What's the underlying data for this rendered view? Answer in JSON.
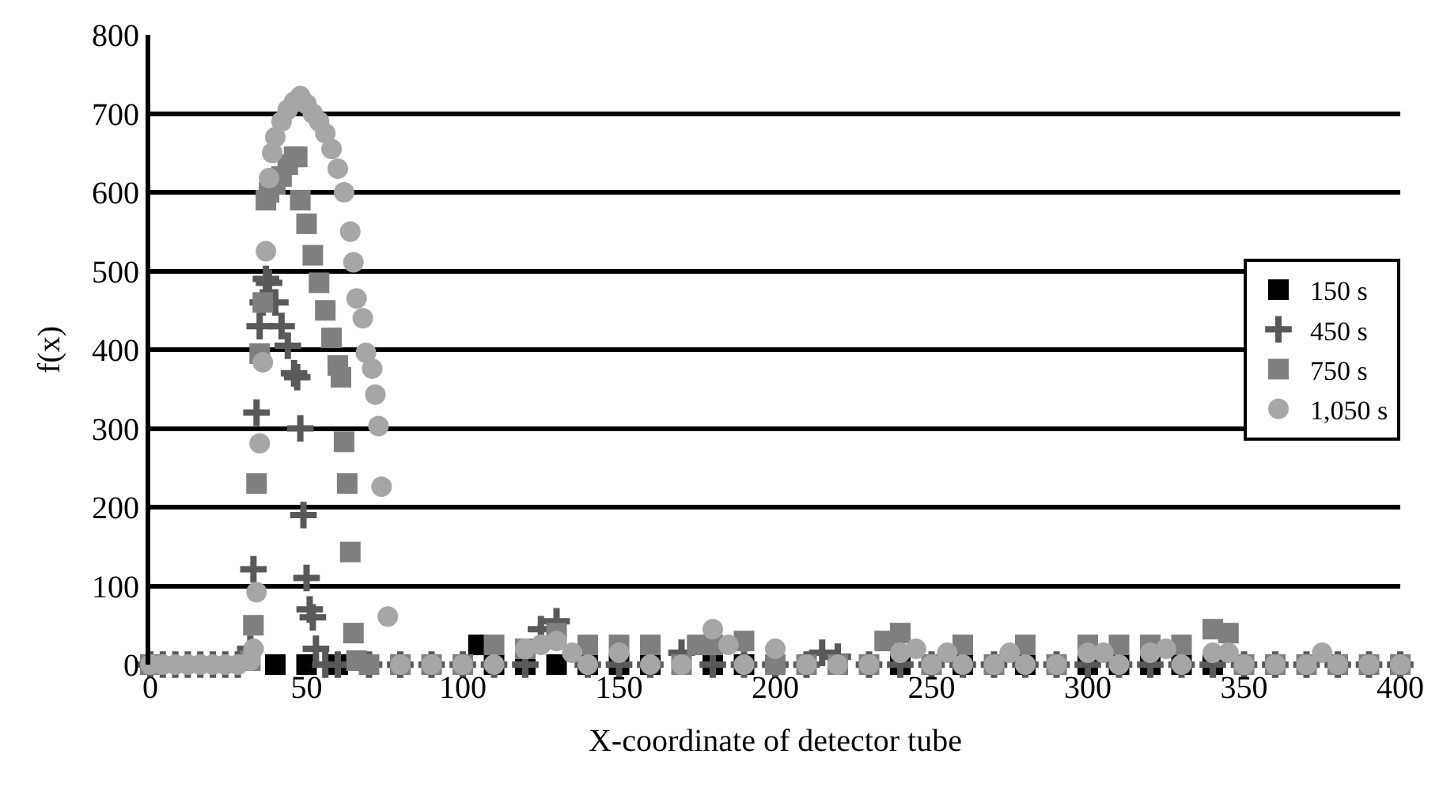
{
  "chart_data": {
    "type": "scatter",
    "xlabel": "X-coordinate of detector tube",
    "ylabel": "f(x)",
    "xlim": [
      0,
      400
    ],
    "xticks": [
      0,
      50,
      100,
      150,
      200,
      250,
      300,
      350,
      400
    ],
    "ylim": [
      0,
      800
    ],
    "yticks": [
      0,
      100,
      200,
      300,
      400,
      500,
      600,
      700,
      800
    ],
    "grid": "y",
    "legend": "right",
    "series": [
      {
        "name": "150 s",
        "color": "#000000",
        "marker": "square",
        "x": [
          40,
          50,
          60,
          105,
          110,
          120,
          130,
          140,
          150,
          160,
          180,
          190,
          240,
          260,
          280,
          300,
          310,
          320,
          330,
          340
        ],
        "values": [
          0,
          0,
          0,
          25,
          0,
          0,
          0,
          0,
          0,
          0,
          0,
          0,
          0,
          0,
          0,
          0,
          0,
          0,
          0,
          0
        ]
      },
      {
        "name": "450 s",
        "color": "#595959",
        "marker": "cross",
        "x": [
          0,
          4,
          8,
          12,
          16,
          20,
          24,
          28,
          32,
          33,
          34,
          35,
          36,
          37,
          38,
          40,
          42,
          44,
          46,
          47,
          48,
          49,
          50,
          51,
          52,
          53,
          56,
          60,
          70,
          80,
          90,
          100,
          110,
          120,
          125,
          130,
          140,
          150,
          160,
          170,
          180,
          190,
          200,
          210,
          215,
          220,
          230,
          240,
          250,
          260,
          270,
          280,
          290,
          300,
          310,
          320,
          330,
          340,
          350,
          360,
          370,
          380,
          390,
          400
        ],
        "values": [
          0,
          0,
          0,
          0,
          0,
          0,
          0,
          0,
          20,
          121,
          320,
          430,
          460,
          490,
          485,
          460,
          430,
          405,
          370,
          365,
          300,
          190,
          110,
          70,
          60,
          20,
          0,
          0,
          0,
          0,
          0,
          0,
          0,
          0,
          45,
          55,
          0,
          0,
          0,
          15,
          0,
          0,
          0,
          0,
          15,
          10,
          0,
          0,
          0,
          0,
          0,
          0,
          0,
          0,
          0,
          0,
          0,
          0,
          0,
          0,
          0,
          0,
          0,
          0
        ]
      },
      {
        "name": "750 s",
        "color": "#7f7f7f",
        "marker": "square",
        "x": [
          0,
          32,
          33,
          34,
          35,
          36,
          37,
          38,
          40,
          42,
          44,
          46,
          47,
          48,
          50,
          52,
          54,
          56,
          58,
          60,
          61,
          62,
          63,
          64,
          65,
          66,
          70,
          80,
          90,
          100,
          110,
          120,
          130,
          140,
          150,
          160,
          170,
          175,
          180,
          190,
          200,
          210,
          220,
          230,
          235,
          240,
          250,
          260,
          270,
          280,
          290,
          300,
          310,
          320,
          330,
          340,
          345,
          350,
          360,
          370,
          380,
          390,
          400
        ],
        "values": [
          0,
          5,
          50,
          230,
          395,
          460,
          590,
          600,
          610,
          620,
          635,
          645,
          645,
          590,
          560,
          520,
          485,
          450,
          415,
          380,
          365,
          283,
          230,
          143,
          40,
          5,
          0,
          0,
          0,
          0,
          25,
          20,
          40,
          25,
          25,
          25,
          0,
          25,
          25,
          30,
          0,
          0,
          0,
          0,
          30,
          40,
          0,
          25,
          0,
          25,
          0,
          25,
          25,
          25,
          25,
          45,
          40,
          0,
          0,
          0,
          0,
          0,
          0
        ]
      },
      {
        "name": "1,050 s",
        "color": "#a6a6a6",
        "marker": "circle",
        "x": [
          0,
          4,
          8,
          12,
          16,
          20,
          24,
          28,
          32,
          33,
          34,
          35,
          36,
          37,
          38,
          39,
          40,
          42,
          44,
          46,
          48,
          50,
          52,
          54,
          56,
          58,
          60,
          62,
          64,
          65,
          66,
          68,
          69,
          71,
          72,
          73,
          74,
          76,
          80,
          90,
          100,
          110,
          120,
          125,
          130,
          135,
          140,
          150,
          160,
          170,
          180,
          185,
          190,
          200,
          210,
          220,
          230,
          240,
          245,
          250,
          255,
          260,
          270,
          275,
          280,
          290,
          300,
          305,
          310,
          320,
          325,
          330,
          340,
          345,
          350,
          360,
          370,
          375,
          380,
          390,
          400
        ],
        "values": [
          0,
          0,
          0,
          0,
          0,
          0,
          0,
          0,
          5,
          20,
          92,
          281,
          384,
          525,
          618,
          650,
          670,
          690,
          705,
          715,
          722,
          712,
          700,
          690,
          675,
          655,
          630,
          600,
          550,
          511,
          465,
          440,
          396,
          376,
          343,
          303,
          226,
          61,
          0,
          0,
          0,
          0,
          20,
          25,
          30,
          15,
          0,
          15,
          0,
          0,
          45,
          25,
          0,
          20,
          0,
          0,
          0,
          15,
          20,
          0,
          15,
          0,
          0,
          15,
          0,
          0,
          15,
          15,
          0,
          15,
          20,
          0,
          15,
          15,
          0,
          0,
          0,
          15,
          0,
          0,
          0
        ]
      }
    ]
  }
}
